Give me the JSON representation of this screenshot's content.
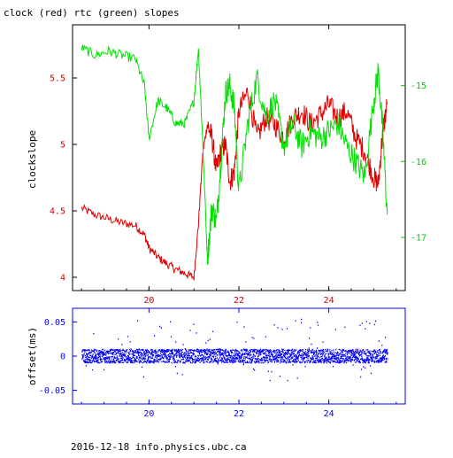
{
  "title": "clock (red) rtc (green) slopes",
  "footer": "2016-12-18 info.physics.ubc.ca",
  "colors": {
    "red": "#e00000",
    "green": "#00e000",
    "blue": "#0000ff"
  },
  "chart_data": [
    {
      "type": "line",
      "title": "clock (red) rtc (green) slopes",
      "ylabel": "clockslope",
      "xlim": [
        18.3,
        25.7
      ],
      "ylim": [
        3.9,
        5.9
      ],
      "y2lim": [
        -17.7,
        -14.2
      ],
      "x_ticks": [
        20,
        22,
        24
      ],
      "y_ticks": [
        4,
        4.5,
        5,
        5.5
      ],
      "y2_ticks": [
        -17,
        -16,
        -15
      ],
      "series": [
        {
          "name": "clock (red)",
          "axis": "left",
          "color": "#e00000",
          "x": [
            18.5,
            18.8,
            19.1,
            19.4,
            19.7,
            19.9,
            20.0,
            20.2,
            20.4,
            20.6,
            20.8,
            21.0,
            21.1,
            21.2,
            21.3,
            21.4,
            21.5,
            21.6,
            21.7,
            21.8,
            21.9,
            22.0,
            22.2,
            22.4,
            22.6,
            22.8,
            23.0,
            23.2,
            23.4,
            23.6,
            23.8,
            24.0,
            24.2,
            24.4,
            24.6,
            24.8,
            25.0,
            25.1,
            25.2,
            25.3
          ],
          "y": [
            4.52,
            4.47,
            4.44,
            4.41,
            4.39,
            4.32,
            4.22,
            4.15,
            4.1,
            4.06,
            4.03,
            4.0,
            4.4,
            4.95,
            5.15,
            5.05,
            4.8,
            4.95,
            5.0,
            4.72,
            4.8,
            5.25,
            5.4,
            5.05,
            5.2,
            5.15,
            5.05,
            5.2,
            5.25,
            5.15,
            5.22,
            5.3,
            5.2,
            5.25,
            5.05,
            4.95,
            4.75,
            4.7,
            5.1,
            5.3
          ]
        },
        {
          "name": "rtc (green)",
          "axis": "right",
          "color": "#00e000",
          "x": [
            18.5,
            18.8,
            19.1,
            19.4,
            19.7,
            19.9,
            20.0,
            20.2,
            20.4,
            20.6,
            20.8,
            21.0,
            21.1,
            21.2,
            21.3,
            21.4,
            21.5,
            21.6,
            21.7,
            21.8,
            21.9,
            22.0,
            22.2,
            22.4,
            22.6,
            22.8,
            23.0,
            23.2,
            23.4,
            23.6,
            23.8,
            24.0,
            24.2,
            24.4,
            24.6,
            24.8,
            25.0,
            25.1,
            25.2,
            25.3
          ],
          "y": [
            -14.5,
            -14.6,
            -14.55,
            -14.6,
            -14.65,
            -15.0,
            -15.7,
            -15.2,
            -15.3,
            -15.5,
            -15.5,
            -15.2,
            -14.5,
            -15.8,
            -17.3,
            -16.6,
            -16.8,
            -16.0,
            -15.1,
            -15.0,
            -15.3,
            -16.4,
            -15.5,
            -14.9,
            -15.4,
            -15.2,
            -15.8,
            -15.5,
            -15.8,
            -15.6,
            -15.7,
            -15.6,
            -15.5,
            -15.8,
            -16.0,
            -16.2,
            -15.2,
            -14.8,
            -15.6,
            -16.7
          ]
        }
      ]
    },
    {
      "type": "scatter",
      "ylabel": "offset(ms)",
      "xlim": [
        18.3,
        25.7
      ],
      "ylim": [
        -0.07,
        0.07
      ],
      "x_ticks": [
        20,
        22,
        24
      ],
      "y_ticks": [
        -0.05,
        0,
        0.05
      ],
      "series": [
        {
          "name": "offset",
          "color": "#0000ff",
          "x_range": [
            18.5,
            25.3
          ],
          "band": 0.01
        }
      ]
    }
  ]
}
